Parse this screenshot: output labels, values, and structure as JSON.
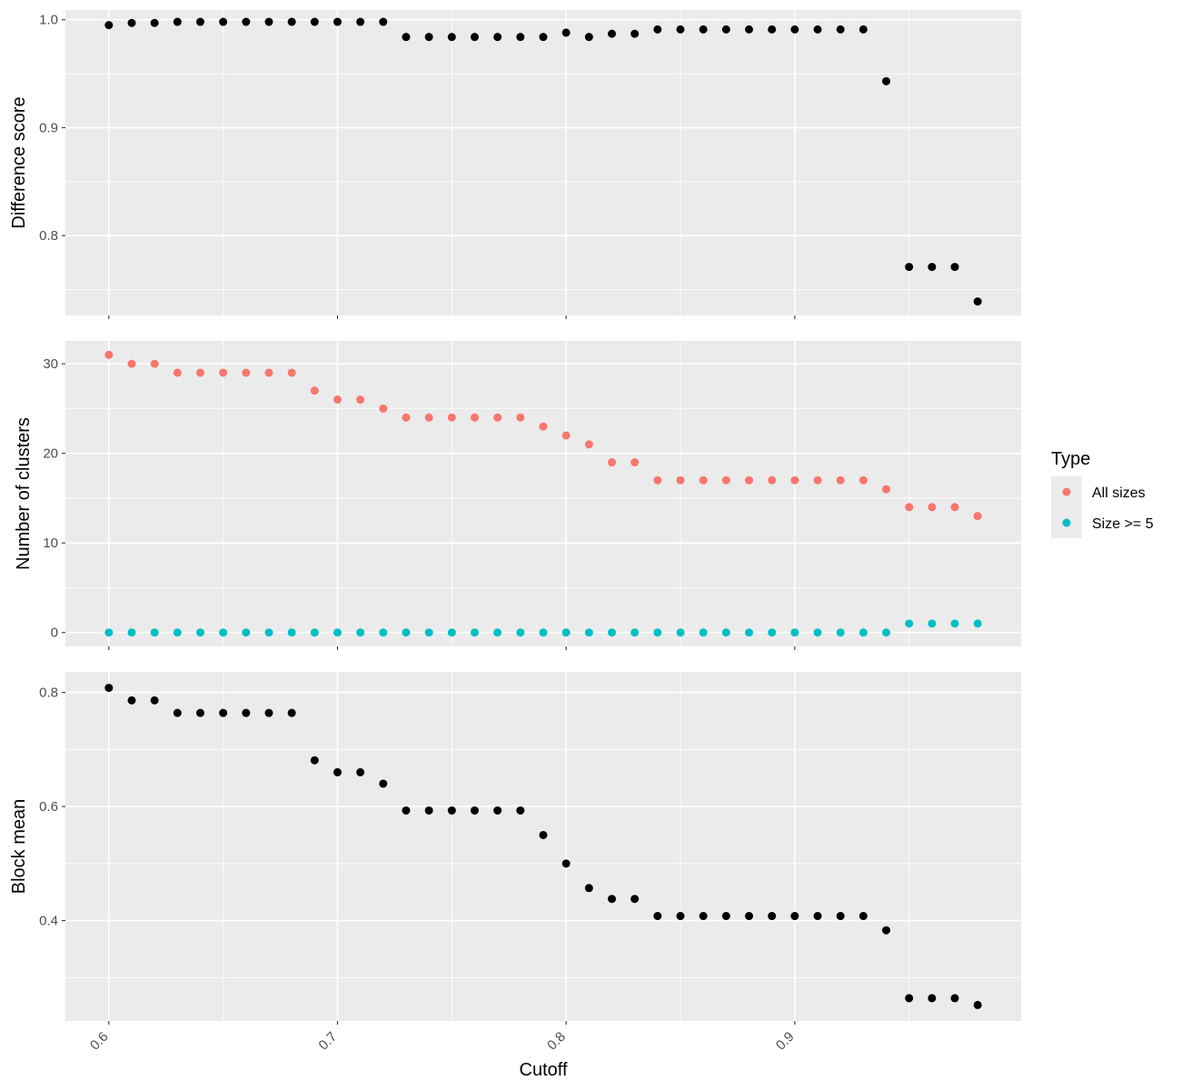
{
  "chart_data": {
    "type": "scatter",
    "layout": "faceted-vertical",
    "x_label": "Cutoff",
    "x_ticks": [
      0.6,
      0.7,
      0.8,
      0.9
    ],
    "x_tick_labels": [
      "0.6",
      "0.7",
      "0.8",
      "0.9"
    ],
    "xlim": [
      0.581,
      0.999
    ],
    "x": [
      0.6,
      0.61,
      0.62,
      0.63,
      0.64,
      0.65,
      0.66,
      0.67,
      0.68,
      0.69,
      0.7,
      0.71,
      0.72,
      0.73,
      0.74,
      0.75,
      0.76,
      0.77,
      0.78,
      0.79,
      0.8,
      0.81,
      0.82,
      0.83,
      0.84,
      0.85,
      0.86,
      0.87,
      0.88,
      0.89,
      0.9,
      0.91,
      0.92,
      0.93,
      0.94,
      0.95,
      0.96,
      0.97,
      0.98
    ],
    "grid": true,
    "legend": {
      "title": "Type",
      "position": "right",
      "entries": [
        {
          "label": "All sizes",
          "color": "#F8766D"
        },
        {
          "label": "Size >= 5",
          "color": "#00BFC4"
        }
      ]
    },
    "panels": [
      {
        "id": "difference",
        "ylabel": "Difference score",
        "ylim": [
          0.726,
          1.009
        ],
        "y_ticks": [
          0.8,
          0.9,
          1.0
        ],
        "y_tick_labels": [
          "0.8",
          "0.9",
          "1.0"
        ],
        "y_minor": [
          0.75,
          0.85,
          0.95
        ],
        "series": [
          {
            "color": "#000000",
            "values": [
              0.995,
              0.997,
              0.997,
              0.998,
              0.998,
              0.998,
              0.998,
              0.998,
              0.998,
              0.998,
              0.998,
              0.998,
              0.998,
              0.984,
              0.984,
              0.984,
              0.984,
              0.984,
              0.984,
              0.984,
              0.988,
              0.984,
              0.987,
              0.987,
              0.991,
              0.991,
              0.991,
              0.991,
              0.991,
              0.991,
              0.991,
              0.991,
              0.991,
              0.991,
              0.943,
              0.771,
              0.771,
              0.771,
              0.739
            ]
          }
        ]
      },
      {
        "id": "clusters",
        "ylabel": "Number of clusters",
        "ylim": [
          -1.55,
          32.55
        ],
        "y_ticks": [
          0,
          10,
          20,
          30
        ],
        "y_tick_labels": [
          "0",
          "10",
          "20",
          "30"
        ],
        "y_minor": [
          5,
          15,
          25
        ],
        "series": [
          {
            "name": "All sizes",
            "color": "#F8766D",
            "values": [
              31,
              30,
              30,
              29,
              29,
              29,
              29,
              29,
              29,
              27,
              26,
              26,
              25,
              24,
              24,
              24,
              24,
              24,
              24,
              23,
              22,
              21,
              19,
              19,
              17,
              17,
              17,
              17,
              17,
              17,
              17,
              17,
              17,
              17,
              16,
              14,
              14,
              14,
              13
            ]
          },
          {
            "name": "Size >= 5",
            "color": "#00BFC4",
            "values": [
              0,
              0,
              0,
              0,
              0,
              0,
              0,
              0,
              0,
              0,
              0,
              0,
              0,
              0,
              0,
              0,
              0,
              0,
              0,
              0,
              0,
              0,
              0,
              0,
              0,
              0,
              0,
              0,
              0,
              0,
              0,
              0,
              0,
              0,
              0,
              1,
              1,
              1,
              1
            ]
          }
        ]
      },
      {
        "id": "block-mean",
        "ylabel": "Block mean",
        "ylim": [
          0.224,
          0.836
        ],
        "y_ticks": [
          0.4,
          0.6,
          0.8
        ],
        "y_tick_labels": [
          "0.4",
          "0.6",
          "0.8"
        ],
        "y_minor": [
          0.3,
          0.5,
          0.7
        ],
        "series": [
          {
            "color": "#000000",
            "values": [
              0.808,
              0.786,
              0.786,
              0.764,
              0.764,
              0.764,
              0.764,
              0.764,
              0.764,
              0.681,
              0.66,
              0.66,
              0.64,
              0.593,
              0.593,
              0.593,
              0.593,
              0.593,
              0.593,
              0.55,
              0.5,
              0.457,
              0.438,
              0.438,
              0.408,
              0.408,
              0.408,
              0.408,
              0.408,
              0.408,
              0.408,
              0.408,
              0.408,
              0.408,
              0.383,
              0.264,
              0.264,
              0.264,
              0.252
            ]
          }
        ]
      }
    ]
  }
}
